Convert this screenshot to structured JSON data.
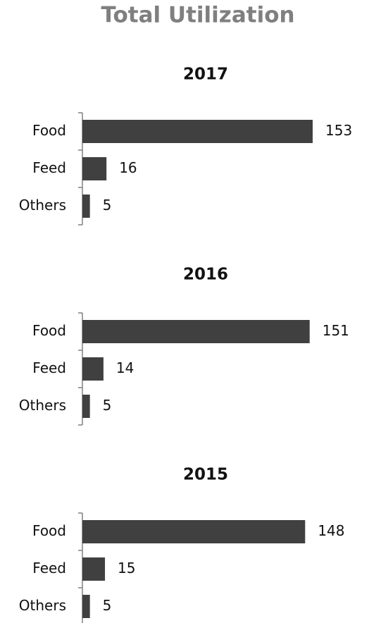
{
  "title": "Total Utilization",
  "chart_data": [
    {
      "type": "barh",
      "title": "2017",
      "categories": [
        "Food",
        "Feed",
        "Others"
      ],
      "values": [
        153,
        16,
        5
      ],
      "color": "#404040"
    },
    {
      "type": "barh",
      "title": "2016",
      "categories": [
        "Food",
        "Feed",
        "Others"
      ],
      "values": [
        151,
        14,
        5
      ],
      "color": "#404040"
    },
    {
      "type": "barh",
      "title": "2015",
      "categories": [
        "Food",
        "Feed",
        "Others"
      ],
      "values": [
        148,
        15,
        5
      ],
      "color": "#404040"
    }
  ]
}
